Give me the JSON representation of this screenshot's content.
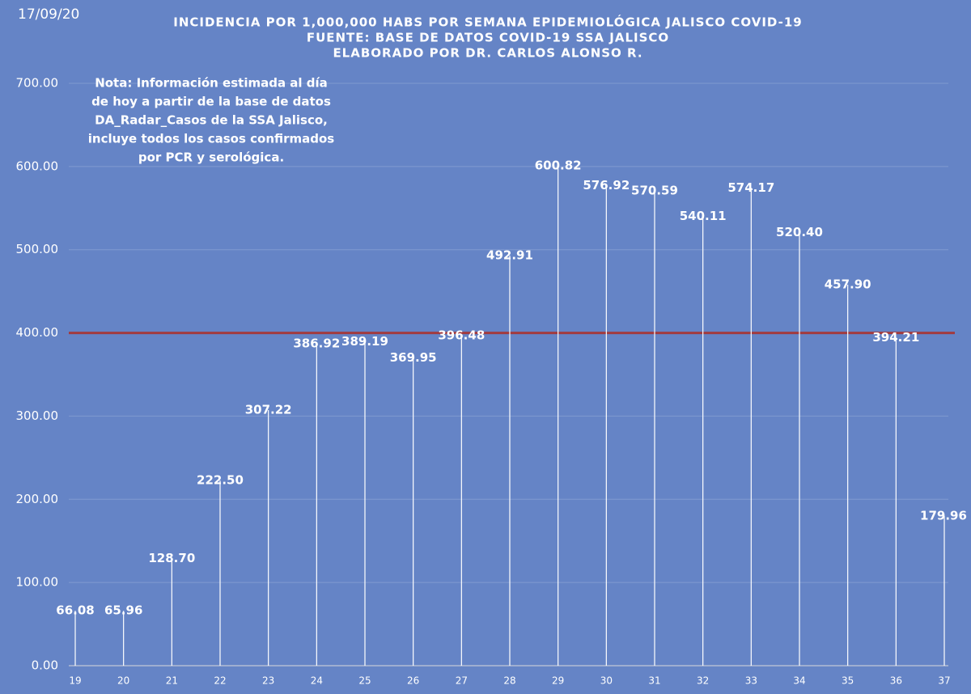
{
  "chart_data": {
    "type": "stem",
    "date": "17/09/20",
    "title": [
      "INCIDENCIA POR 1,000,000 HABS POR SEMANA EPIDEMIOLÓGICA JALISCO COVID-19",
      "FUENTE: BASE DE DATOS COVID-19 SSA JALISCO",
      "ELABORADO POR DR. CARLOS ALONSO R."
    ],
    "annotation": [
      "Nota: Información estimada al día",
      "de hoy a partir de la base de datos",
      "DA_Radar_Casos de la SSA Jalisco,",
      "incluye todos los casos confirmados",
      "por PCR y serológica."
    ],
    "categories": [
      "19",
      "20",
      "21",
      "22",
      "23",
      "24",
      "25",
      "26",
      "27",
      "28",
      "29",
      "30",
      "31",
      "32",
      "33",
      "34",
      "35",
      "36",
      "37"
    ],
    "values": [
      66.08,
      65.96,
      128.7,
      222.5,
      307.22,
      386.92,
      389.19,
      369.95,
      396.48,
      492.91,
      600.82,
      576.92,
      570.59,
      540.11,
      574.17,
      520.4,
      457.9,
      394.21,
      179.96
    ],
    "value_labels": [
      "66.08",
      "65.96",
      "128.70",
      "222.50",
      "307.22",
      "386.92",
      "389.19",
      "369.95",
      "396.48",
      "492.91",
      "600.82",
      "576.92",
      "570.59",
      "540.11",
      "574.17",
      "520.40",
      "457.90",
      "394.21",
      "179.96"
    ],
    "color": "#ffffff",
    "reference_line": {
      "value": 400,
      "color": "#a23b3f"
    },
    "ylim": [
      0,
      700
    ],
    "yticks": [
      {
        "value": 0,
        "label": "0.00"
      },
      {
        "value": 100,
        "label": "100.00"
      },
      {
        "value": 200,
        "label": "200.00"
      },
      {
        "value": 300,
        "label": "300.00"
      },
      {
        "value": 400,
        "label": "400.00"
      },
      {
        "value": 500,
        "label": "500.00"
      },
      {
        "value": 600,
        "label": "600.00"
      },
      {
        "value": 700,
        "label": "700.00"
      }
    ],
    "grid": true
  }
}
